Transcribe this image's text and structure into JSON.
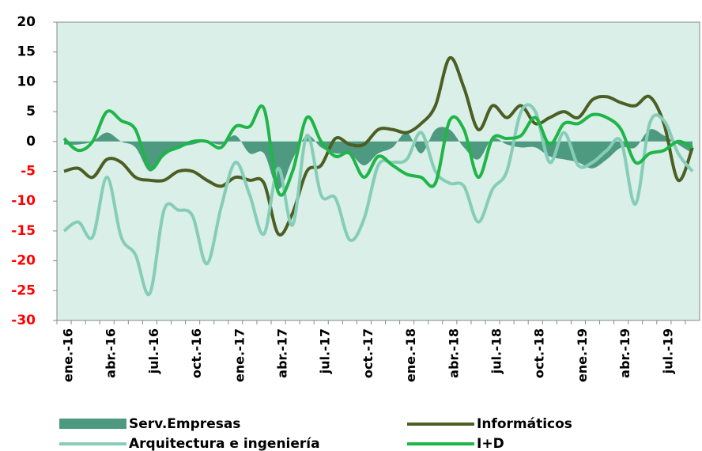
{
  "chart_data": {
    "type": "line",
    "categories": [
      "ene.-16",
      null,
      null,
      "abr.-16",
      null,
      null,
      "jul.-16",
      null,
      null,
      "oct.-16",
      null,
      null,
      "ene.-17",
      null,
      null,
      "abr.-17",
      null,
      null,
      "jul.-17",
      null,
      null,
      "oct.-17",
      null,
      null,
      "ene.-18",
      null,
      null,
      "abr.-18",
      null,
      null,
      "jul.-18",
      null,
      null,
      "oct.-18",
      null,
      null,
      "ene.-19",
      null,
      null,
      "abr.-19",
      null,
      null,
      "jul.-19",
      null,
      null
    ],
    "ylim": [
      -30,
      20
    ],
    "yticks": [
      -30,
      -25,
      -20,
      -15,
      -10,
      -5,
      0,
      5,
      10,
      15,
      20
    ],
    "tick_color": "#000000",
    "negative_tick_color": "#ff0000",
    "background": "#d9efe8",
    "smooth": true,
    "legend": "bottom",
    "series": [
      {
        "name": "Serv.Empresas",
        "type": "area",
        "color": "#4e9a80",
        "values": [
          -0.5,
          -0.5,
          0,
          1.5,
          0,
          -1,
          -5,
          -2.5,
          -1,
          -0.5,
          0,
          -0.5,
          1,
          -2,
          -2,
          -8,
          -3,
          1,
          -1,
          -2,
          -2,
          -4,
          -2,
          -1,
          1.5,
          -2,
          2,
          2,
          -1,
          -3,
          0.5,
          -0.5,
          -1,
          -1,
          -2.5,
          -3,
          -3.5,
          -4.5,
          -3,
          -1,
          -1,
          2,
          1,
          -0.5,
          -2
        ]
      },
      {
        "name": "Informáticos",
        "type": "line",
        "color": "#4d5e23",
        "values": [
          -5,
          -4.5,
          -6,
          -3,
          -3.5,
          -6,
          -6.5,
          -6.5,
          -5,
          -5,
          -6.5,
          -7.5,
          -6,
          -6.5,
          -7,
          -15.5,
          -12,
          -5,
          -4,
          0.5,
          -0.5,
          -0.5,
          2,
          2,
          1.5,
          3,
          6,
          14,
          9,
          2,
          6,
          4,
          6,
          3,
          4,
          5,
          4,
          7,
          7.5,
          6.5,
          6,
          7.5,
          3,
          -6.5,
          -1
        ]
      },
      {
        "name": "Arquitectura e ingeniería",
        "type": "line",
        "color": "#86cdb8",
        "values": [
          -15,
          -13.5,
          -16,
          -6,
          -16,
          -19,
          -25.5,
          -11.5,
          -11.5,
          -12.5,
          -20.5,
          -11,
          -3.5,
          -9,
          -15.5,
          -4.5,
          -14,
          1,
          -9,
          -9.5,
          -16.5,
          -13,
          -4,
          -3.5,
          -3,
          1.5,
          -5,
          -7,
          -7.5,
          -13.5,
          -8,
          -5,
          5,
          5,
          -3.5,
          1.5,
          -4,
          -3.5,
          -1.5,
          0,
          -10.5,
          3,
          3.5,
          -2,
          -5
        ]
      },
      {
        "name": "I+D",
        "type": "line",
        "color": "#1fb548",
        "values": [
          0.5,
          -1.5,
          0,
          5,
          3.5,
          2,
          -4.5,
          -2,
          -1,
          0,
          0,
          -1,
          2.5,
          2.5,
          5.5,
          -8.5,
          -5,
          4,
          0,
          -2.5,
          -2,
          -6,
          -2.5,
          -4,
          -5.5,
          -6,
          -7,
          3.5,
          2,
          -6,
          0.5,
          0.5,
          1,
          4,
          -0.5,
          3,
          3,
          4.5,
          4,
          2,
          -3.5,
          -2,
          -1.5,
          0,
          -1
        ]
      }
    ]
  }
}
